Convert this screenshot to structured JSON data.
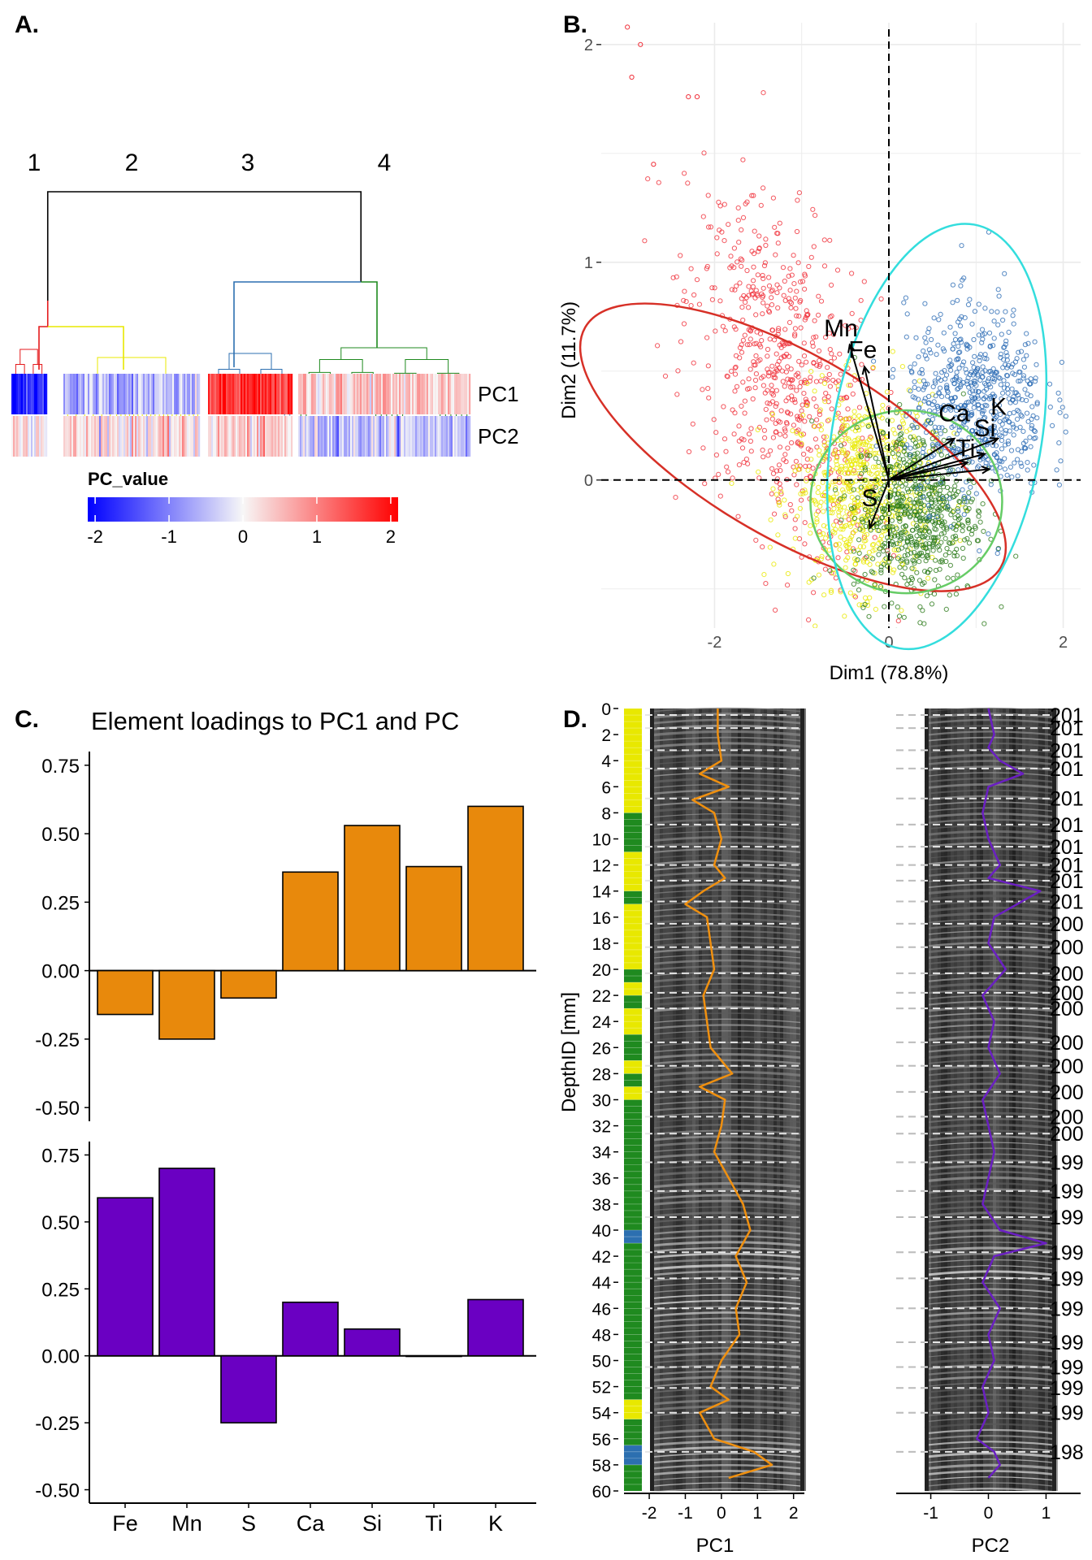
{
  "panels": {
    "a": {
      "letter": "A."
    },
    "b": {
      "letter": "B."
    },
    "c": {
      "letter": "C."
    },
    "d": {
      "letter": "D."
    }
  },
  "chart_data": [
    {
      "id": "A",
      "type": "heatmap",
      "clusters": [
        "1",
        "2",
        "3",
        "4"
      ],
      "cluster_colors": [
        "#e41a1c",
        "#e8e800",
        "#2c6fb0",
        "#1f8a1f"
      ],
      "rows": [
        "PC1",
        "PC2"
      ],
      "cluster_mean_values": {
        "PC1": [
          -1.8,
          -0.6,
          1.6,
          0.4
        ],
        "PC2": [
          0.3,
          0.2,
          0.3,
          -0.4
        ]
      },
      "legend": {
        "title": "PC_value",
        "ticks": [
          -2,
          -1,
          0,
          1,
          2
        ],
        "range": [
          -2.1,
          2.1
        ],
        "low_color": "#0000ff",
        "mid_color": "#f7f7f7",
        "high_color": "#ff0000"
      }
    },
    {
      "id": "B",
      "type": "scatter",
      "xlabel": "Dim1 (78.8%)",
      "ylabel": "Dim2 (11.7%)",
      "xlim": [
        -3.3,
        2.2
      ],
      "ylim": [
        -0.68,
        2.1
      ],
      "xticks": [
        -2,
        0,
        2
      ],
      "yticks": [
        0,
        1,
        2
      ],
      "grid": true,
      "cluster_colors": [
        "#f0303a",
        "#e8e800",
        "#2c7a1a",
        "#2d6db5"
      ],
      "cluster_centers": [
        [
          -1.2,
          0.45
        ],
        [
          -0.3,
          -0.05
        ],
        [
          0.3,
          -0.15
        ],
        [
          1.0,
          0.35
        ]
      ],
      "cluster_spread": [
        [
          0.55,
          0.38
        ],
        [
          0.4,
          0.22
        ],
        [
          0.35,
          0.2
        ],
        [
          0.4,
          0.22
        ]
      ],
      "ellipses": [
        {
          "cx": -1.1,
          "cy": 0.15,
          "rx": 1.05,
          "ry": 0.58,
          "angle": -60,
          "color": "#d73027"
        },
        {
          "cx": 0.2,
          "cy": -0.1,
          "rx": 1.1,
          "ry": 0.42,
          "angle": 0,
          "color": "#66cc66"
        },
        {
          "cx": 0.55,
          "cy": 0.2,
          "rx": 1.2,
          "ry": 0.52,
          "angle": 10,
          "color": "#33dddd"
        }
      ],
      "loadings": [
        {
          "name": "Mn",
          "x": -0.45,
          "y": 0.62
        },
        {
          "name": "Fe",
          "x": -0.28,
          "y": 0.52
        },
        {
          "name": "S",
          "x": -0.22,
          "y": -0.22
        },
        {
          "name": "Ca",
          "x": 0.75,
          "y": 0.19
        },
        {
          "name": "K",
          "x": 1.25,
          "y": 0.19
        },
        {
          "name": "Si",
          "x": 1.1,
          "y": 0.12
        },
        {
          "name": "Ti",
          "x": 0.9,
          "y": 0.08
        },
        {
          "name": "",
          "x": 1.15,
          "y": 0.05
        }
      ]
    },
    {
      "id": "C",
      "type": "bar",
      "title": "Element loadings to PC1 and PC",
      "categories": [
        "Fe",
        "Mn",
        "S",
        "Ca",
        "Si",
        "Ti",
        "K"
      ],
      "ylim": [
        -0.55,
        0.8
      ],
      "yticks": [
        "0.75",
        "0.50",
        "0.25",
        "0.00",
        "-0.25",
        "-0.50"
      ],
      "series": [
        {
          "values": [
            -0.16,
            -0.25,
            -0.1,
            0.36,
            0.53,
            0.38,
            0.6
          ],
          "color": "#e8890c"
        },
        {
          "values": [
            0.59,
            0.7,
            -0.25,
            0.2,
            0.1,
            0.0,
            0.21
          ],
          "color": "#6a00c2"
        }
      ]
    },
    {
      "id": "D",
      "type": "line",
      "ylabel": "DepthID [mm]",
      "ylim": [
        0,
        60
      ],
      "yticks": [
        0,
        2,
        4,
        6,
        8,
        10,
        12,
        14,
        16,
        18,
        20,
        22,
        24,
        26,
        28,
        30,
        32,
        34,
        36,
        38,
        40,
        42,
        44,
        46,
        48,
        50,
        52,
        54,
        56,
        58,
        60
      ],
      "pc1": {
        "xlabel": "PC1",
        "xlim": [
          -2.7,
          2.3
        ],
        "xticks": [
          -2,
          -1,
          0,
          1,
          2
        ],
        "color": "#f0900f",
        "depth": [
          0,
          2,
          4,
          5,
          6,
          7,
          8,
          10,
          12,
          13,
          14,
          15,
          16,
          18,
          20,
          22,
          24,
          26,
          28,
          29,
          30,
          32,
          34,
          36,
          38,
          40,
          42,
          44,
          46,
          48,
          50,
          52,
          53,
          54,
          56,
          57,
          58,
          59
        ],
        "value": [
          -0.1,
          -0.1,
          0.0,
          -0.6,
          0.2,
          -0.8,
          -0.2,
          0.0,
          -0.2,
          0.1,
          -0.5,
          -1.0,
          -0.4,
          -0.3,
          -0.2,
          -0.5,
          -0.4,
          -0.3,
          0.3,
          -0.6,
          0.1,
          0.0,
          -0.2,
          0.2,
          0.6,
          0.8,
          0.4,
          0.7,
          0.4,
          0.5,
          0.0,
          -0.3,
          0.2,
          -0.6,
          -0.2,
          0.9,
          1.4,
          0.2
        ]
      },
      "pc2": {
        "xlabel": "PC2",
        "xlim": [
          -1.6,
          1.6
        ],
        "xticks": [
          -1,
          0,
          1
        ],
        "color": "#6a1fc2",
        "depth": [
          0,
          2,
          3,
          4,
          5,
          6,
          8,
          10,
          12,
          13,
          14,
          16,
          18,
          20,
          22,
          24,
          26,
          28,
          30,
          32,
          34,
          36,
          38,
          40,
          41,
          42,
          44,
          46,
          48,
          50,
          52,
          54,
          56,
          57,
          58,
          59
        ],
        "value": [
          0.0,
          0.1,
          0.0,
          0.2,
          0.6,
          0.0,
          -0.1,
          0.0,
          0.2,
          0.0,
          0.9,
          0.1,
          0.0,
          0.3,
          -0.1,
          0.1,
          0.0,
          0.2,
          -0.1,
          0.0,
          0.1,
          0.0,
          -0.1,
          0.2,
          1.0,
          0.1,
          -0.1,
          0.2,
          0.0,
          0.1,
          -0.1,
          0.0,
          -0.2,
          0.1,
          0.2,
          0.0
        ]
      },
      "year_labels": [
        {
          "depth": 0.5,
          "text": "201"
        },
        {
          "depth": 1.5,
          "text": "201"
        },
        {
          "depth": 3.2,
          "text": "201"
        },
        {
          "depth": 4.6,
          "text": "201"
        },
        {
          "depth": 6.9,
          "text": "201"
        },
        {
          "depth": 8.9,
          "text": "201"
        },
        {
          "depth": 10.6,
          "text": "201"
        },
        {
          "depth": 12.0,
          "text": "201"
        },
        {
          "depth": 13.2,
          "text": "201"
        },
        {
          "depth": 14.8,
          "text": "201"
        },
        {
          "depth": 16.5,
          "text": "200"
        },
        {
          "depth": 18.3,
          "text": "200"
        },
        {
          "depth": 20.3,
          "text": "200"
        },
        {
          "depth": 21.8,
          "text": "200"
        },
        {
          "depth": 23.0,
          "text": "200"
        },
        {
          "depth": 25.6,
          "text": "200"
        },
        {
          "depth": 27.4,
          "text": "200"
        },
        {
          "depth": 29.4,
          "text": "200"
        },
        {
          "depth": 31.3,
          "text": "200"
        },
        {
          "depth": 32.6,
          "text": "200"
        },
        {
          "depth": 34.8,
          "text": "199"
        },
        {
          "depth": 37.0,
          "text": "199"
        },
        {
          "depth": 39.0,
          "text": "199"
        },
        {
          "depth": 41.7,
          "text": "199"
        },
        {
          "depth": 43.7,
          "text": "199"
        },
        {
          "depth": 46.0,
          "text": "199"
        },
        {
          "depth": 48.6,
          "text": "199"
        },
        {
          "depth": 50.5,
          "text": "199"
        },
        {
          "depth": 52.1,
          "text": "199"
        },
        {
          "depth": 54.0,
          "text": "199"
        },
        {
          "depth": 57.0,
          "text": "198"
        }
      ],
      "cluster_strip": {
        "colors": {
          "1": "#e41a1c",
          "2": "#e8e800",
          "3": "#2c6fb0",
          "4": "#1f8a1f"
        },
        "segments": [
          {
            "from": 0,
            "to": 8,
            "cluster": "2"
          },
          {
            "from": 8,
            "to": 9,
            "cluster": "4"
          },
          {
            "from": 9,
            "to": 11,
            "cluster": "4"
          },
          {
            "from": 11,
            "to": 14,
            "cluster": "2"
          },
          {
            "from": 14,
            "to": 15,
            "cluster": "4"
          },
          {
            "from": 15,
            "to": 20,
            "cluster": "2"
          },
          {
            "from": 20,
            "to": 21,
            "cluster": "4"
          },
          {
            "from": 21,
            "to": 22,
            "cluster": "2"
          },
          {
            "from": 22,
            "to": 23,
            "cluster": "4"
          },
          {
            "from": 23,
            "to": 25,
            "cluster": "2"
          },
          {
            "from": 25,
            "to": 27,
            "cluster": "4"
          },
          {
            "from": 27,
            "to": 28,
            "cluster": "2"
          },
          {
            "from": 28,
            "to": 29,
            "cluster": "4"
          },
          {
            "from": 29,
            "to": 30,
            "cluster": "2"
          },
          {
            "from": 30,
            "to": 40,
            "cluster": "4"
          },
          {
            "from": 40,
            "to": 41,
            "cluster": "3"
          },
          {
            "from": 41,
            "to": 53,
            "cluster": "4"
          },
          {
            "from": 53,
            "to": 54.5,
            "cluster": "2"
          },
          {
            "from": 54.5,
            "to": 56.5,
            "cluster": "4"
          },
          {
            "from": 56.5,
            "to": 58,
            "cluster": "3"
          },
          {
            "from": 58,
            "to": 60,
            "cluster": "4"
          }
        ]
      }
    }
  ]
}
